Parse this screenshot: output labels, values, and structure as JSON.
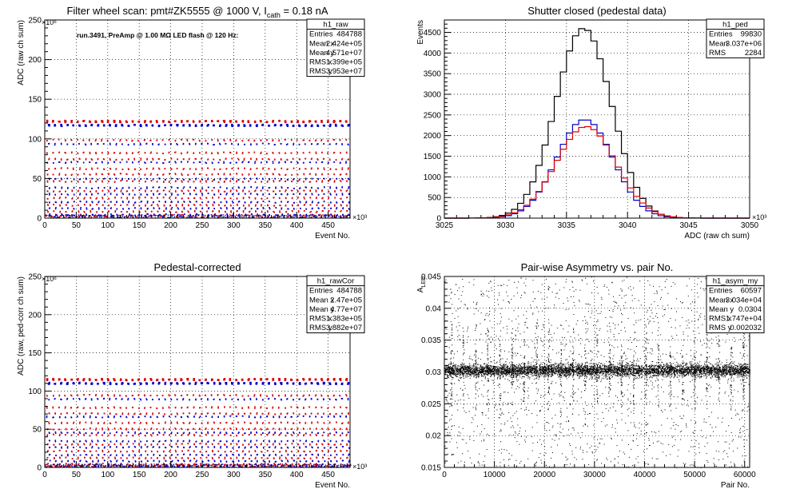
{
  "chart_data": [
    {
      "type": "scatter",
      "title": "Filter wheel scan: pmt#ZK5555 @  1000 V, I",
      "title_sub": "cath",
      "title_tail": " = 0.18 nA",
      "annotation": "run.3491, PreAmp @ 1.00 MΩ LED flash @  120 Hz:",
      "xlabel": "Event No.",
      "ylabel": "ADC (raw ch sum)",
      "x_exponent": "×10³",
      "y_exponent": "×10⁶",
      "xlim": [
        0,
        484.788
      ],
      "ylim": [
        0,
        250
      ],
      "xticks": [
        0,
        50,
        100,
        150,
        200,
        250,
        300,
        350,
        400,
        450
      ],
      "yticks": [
        0,
        50,
        100,
        150,
        200,
        250
      ],
      "grid": true,
      "stats": {
        "name": "h1_raw",
        "rows": [
          [
            "Entries",
            "484788"
          ],
          [
            "Mean x",
            "2.424e+05"
          ],
          [
            "Mean y",
            "4.571e+07"
          ],
          [
            "RMS x",
            "1.399e+05"
          ],
          [
            "RMS y",
            "3.953e+07"
          ]
        ]
      },
      "step_period": 9.7,
      "steps": [
        {
          "level": 122,
          "color": "#dd0000"
        },
        {
          "level": 117,
          "color": "#0000cc"
        },
        {
          "level": 98,
          "color": "#dd0000"
        },
        {
          "level": 93,
          "color": "#0000cc"
        },
        {
          "level": 82,
          "color": "#dd0000"
        },
        {
          "level": 74,
          "color": "#dd0000"
        },
        {
          "level": 70,
          "color": "#0000cc"
        },
        {
          "level": 62,
          "color": "#dd0000"
        },
        {
          "level": 55,
          "color": "#dd0000"
        },
        {
          "level": 49,
          "color": "#0000cc"
        },
        {
          "level": 46,
          "color": "#dd0000"
        },
        {
          "level": 38,
          "color": "#0000cc"
        },
        {
          "level": 34,
          "color": "#dd0000"
        },
        {
          "level": 30,
          "color": "#0000cc"
        },
        {
          "level": 25,
          "color": "#dd0000"
        },
        {
          "level": 20,
          "color": "#0000cc"
        },
        {
          "level": 16,
          "color": "#dd0000"
        },
        {
          "level": 12,
          "color": "#0000cc"
        },
        {
          "level": 8,
          "color": "#dd0000"
        },
        {
          "level": 4,
          "color": "#0000cc"
        }
      ]
    },
    {
      "type": "line",
      "title": "Shutter closed (pedestal data)",
      "xlabel": "ADC (raw ch sum)",
      "ylabel": "Events",
      "x_exponent": "×10³",
      "xlim": [
        3025,
        3050
      ],
      "ylim": [
        0,
        4800
      ],
      "xticks": [
        3025,
        3030,
        3035,
        3040,
        3045,
        3050
      ],
      "yticks": [
        0,
        500,
        1000,
        1500,
        2000,
        2500,
        3000,
        3500,
        4000,
        4500
      ],
      "grid": true,
      "stats": {
        "name": "h1_ped",
        "rows": [
          [
            "Entries",
            "99830"
          ],
          [
            "Mean",
            "3.037e+06"
          ],
          [
            "RMS",
            "2284"
          ]
        ]
      },
      "series": [
        {
          "color": "#000000",
          "peak": 4600,
          "mean": 3036.4,
          "sigma": 2.28
        },
        {
          "color": "#0000cc",
          "peak": 2390,
          "mean": 3036.5,
          "sigma": 2.3
        },
        {
          "color": "#dd0000",
          "peak": 2220,
          "mean": 3036.6,
          "sigma": 2.45
        }
      ]
    },
    {
      "type": "scatter",
      "title": "Pedestal-corrected",
      "xlabel": "Event No.",
      "ylabel": "ADC (raw, ped-corr ch sum)",
      "x_exponent": "×10³",
      "y_exponent": "×10⁶",
      "xlim": [
        0,
        484.788
      ],
      "ylim": [
        0,
        250
      ],
      "xticks": [
        0,
        50,
        100,
        150,
        200,
        250,
        300,
        350,
        400,
        450
      ],
      "yticks": [
        0,
        50,
        100,
        150,
        200,
        250
      ],
      "grid": true,
      "stats": {
        "name": "h1_rawCor",
        "rows": [
          [
            "Entries",
            "484788"
          ],
          [
            "Mean x",
            "2.47e+05"
          ],
          [
            "Mean y",
            "4.77e+07"
          ],
          [
            "RMS x",
            "1.383e+05"
          ],
          [
            "RMS y",
            "3.882e+07"
          ]
        ]
      },
      "step_period": 9.7,
      "steps": [
        {
          "level": 115,
          "color": "#dd0000"
        },
        {
          "level": 110,
          "color": "#0000cc"
        },
        {
          "level": 94,
          "color": "#dd0000"
        },
        {
          "level": 89,
          "color": "#0000cc"
        },
        {
          "level": 78,
          "color": "#dd0000"
        },
        {
          "level": 70,
          "color": "#dd0000"
        },
        {
          "level": 66,
          "color": "#0000cc"
        },
        {
          "level": 58,
          "color": "#dd0000"
        },
        {
          "level": 50,
          "color": "#dd0000"
        },
        {
          "level": 45,
          "color": "#0000cc"
        },
        {
          "level": 42,
          "color": "#dd0000"
        },
        {
          "level": 34,
          "color": "#0000cc"
        },
        {
          "level": 30,
          "color": "#dd0000"
        },
        {
          "level": 26,
          "color": "#0000cc"
        },
        {
          "level": 21,
          "color": "#dd0000"
        },
        {
          "level": 16,
          "color": "#0000cc"
        },
        {
          "level": 12,
          "color": "#dd0000"
        },
        {
          "level": 8,
          "color": "#0000cc"
        },
        {
          "level": 4,
          "color": "#dd0000"
        },
        {
          "level": 1,
          "color": "#0000cc"
        }
      ]
    },
    {
      "type": "scatter",
      "title": "Pair-wise Asymmetry vs. pair No.",
      "xlabel": "Pair No.",
      "ylabel": "A",
      "ylabel_sub": "LED",
      "xlim": [
        0,
        61000
      ],
      "ylim": [
        0.015,
        0.045
      ],
      "xticks": [
        0,
        10000,
        20000,
        30000,
        40000,
        50000,
        60000
      ],
      "yticks": [
        0.015,
        0.02,
        0.025,
        0.03,
        0.035,
        0.04,
        0.045
      ],
      "grid": true,
      "stats": {
        "name": "h1_asym_my",
        "rows": [
          [
            "Entries",
            "60597"
          ],
          [
            "Mean x",
            "3.034e+04"
          ],
          [
            "Mean y",
            "0.0304"
          ],
          [
            "RMS x",
            "1.747e+04"
          ],
          [
            "RMS y",
            "0.002032"
          ]
        ]
      },
      "band": {
        "center": 0.0303,
        "halfwidth": 0.0009
      },
      "spike_period": 2430
    }
  ]
}
